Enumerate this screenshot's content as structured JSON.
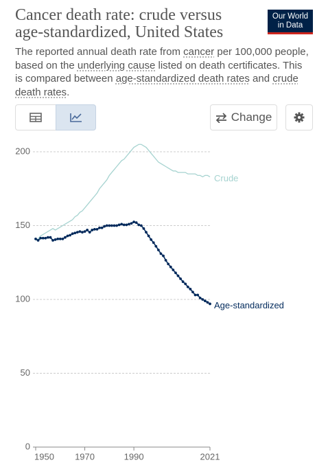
{
  "logo": [
    "Our World",
    "in Data"
  ],
  "buttons": {
    "change": "Change"
  },
  "chart_data": {
    "type": "line",
    "title": [
      "Cancer death rate: crude versus",
      "age-standardized, United States"
    ],
    "subtitle": [
      {
        "text": "The reported annual death rate from ",
        "underlined": false
      },
      {
        "text": "cancer",
        "underlined": true
      },
      {
        "text": " per 100,000 people, based on the ",
        "underlined": false
      },
      {
        "text": "underlying cause",
        "underlined": true
      },
      {
        "text": " listed on death certificates. This is compared between ",
        "underlined": false
      },
      {
        "text": "age-standardized death rates",
        "underlined": true
      },
      {
        "text": " and ",
        "underlined": false
      },
      {
        "text": "crude death rates",
        "underlined": true
      },
      {
        "text": ".",
        "underlined": false
      }
    ],
    "x": [
      1950,
      1951,
      1952,
      1953,
      1954,
      1955,
      1956,
      1957,
      1958,
      1959,
      1960,
      1961,
      1962,
      1963,
      1964,
      1965,
      1966,
      1967,
      1968,
      1969,
      1970,
      1971,
      1972,
      1973,
      1974,
      1975,
      1976,
      1977,
      1978,
      1979,
      1980,
      1981,
      1982,
      1983,
      1984,
      1985,
      1986,
      1987,
      1988,
      1989,
      1990,
      1991,
      1992,
      1993,
      1994,
      1995,
      1996,
      1997,
      1998,
      1999,
      2000,
      2001,
      2002,
      2003,
      2004,
      2005,
      2006,
      2007,
      2008,
      2009,
      2010,
      2011,
      2012,
      2013,
      2014,
      2015,
      2016,
      2017,
      2018,
      2019,
      2020,
      2021
    ],
    "series": [
      {
        "name": "Crude",
        "color": "#a6d3d0",
        "markers": false,
        "values": [
          140,
          141,
          143,
          144,
          145,
          146,
          147,
          148,
          147,
          148,
          149,
          150,
          151,
          152,
          153,
          154,
          156,
          157,
          159,
          160,
          162,
          164,
          166,
          168,
          170,
          172,
          175,
          177,
          179,
          181,
          184,
          186,
          188,
          190,
          192,
          194,
          195,
          197,
          199,
          201,
          203,
          204,
          205,
          205,
          204,
          203,
          201,
          199,
          197,
          195,
          193,
          192,
          191,
          190,
          189,
          188,
          187,
          187,
          186,
          186,
          186,
          186,
          185,
          185,
          185,
          185,
          184,
          184,
          183,
          184,
          184,
          183
        ]
      },
      {
        "name": "Age-standardized",
        "color": "#00295b",
        "markers": true,
        "values": [
          141,
          140,
          141.5,
          141.5,
          141.5,
          142,
          142,
          140,
          140.5,
          141,
          141,
          141,
          142,
          143,
          143.5,
          144.5,
          145,
          145.5,
          146,
          145.5,
          146,
          147,
          145.5,
          147,
          147.5,
          147.5,
          148.5,
          148.5,
          149.5,
          150,
          150,
          150,
          150,
          150,
          150.5,
          151,
          150.5,
          150.5,
          151,
          151.5,
          152.5,
          152,
          150.5,
          150,
          148,
          145.5,
          143,
          140.5,
          138.5,
          136,
          133.5,
          131,
          129.5,
          126.5,
          124,
          122,
          120,
          118,
          116,
          114,
          112,
          110.5,
          108.5,
          107,
          105,
          103,
          103,
          101,
          100,
          99,
          98,
          97
        ]
      }
    ],
    "xlim": [
      1950,
      2021
    ],
    "xticks": [
      1950,
      1970,
      1990,
      2021
    ],
    "ylim": [
      0,
      200
    ],
    "yticks": [
      0,
      50,
      100,
      150,
      200
    ],
    "grid": true
  }
}
